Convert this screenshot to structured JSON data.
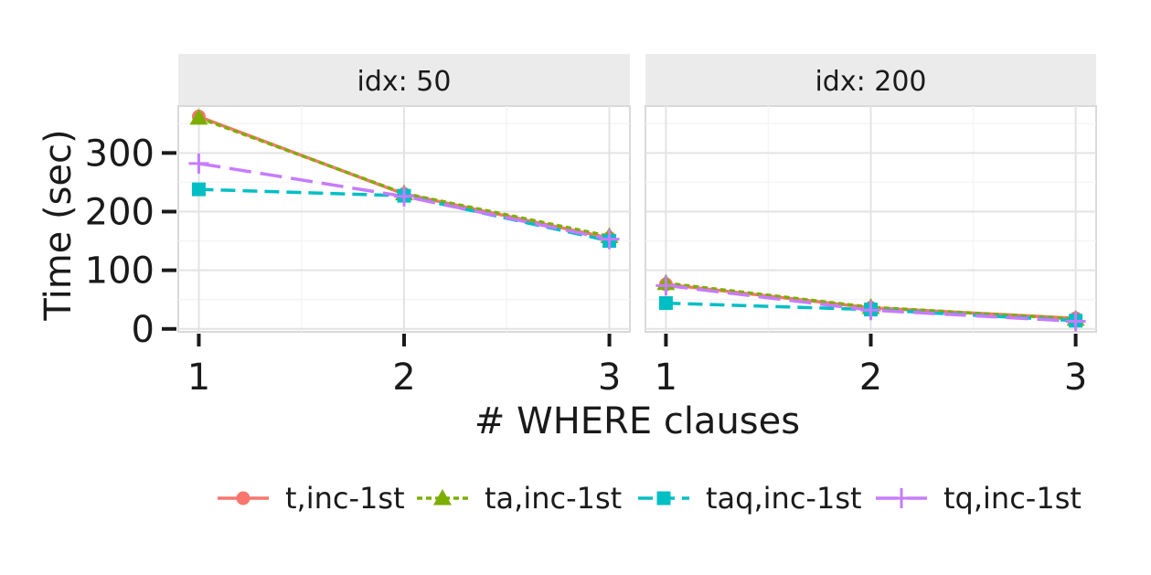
{
  "chart_data": {
    "type": "line",
    "xlabel": "# WHERE clauses",
    "ylabel": "Time (sec)",
    "x_ticks": [
      "1",
      "2",
      "3"
    ],
    "y_ticks": [
      "0",
      "100",
      "200",
      "300"
    ],
    "xlim": [
      0.9,
      3.1
    ],
    "ylim": [
      -5,
      380
    ],
    "legend_position": "bottom",
    "grid": true,
    "facet_label": "idx",
    "series_style": [
      {
        "name": "t,inc-1st",
        "color": "#F8766D",
        "dash": "solid",
        "marker": "circle"
      },
      {
        "name": "ta,inc-1st",
        "color": "#7CAE00",
        "dash": "dotted",
        "marker": "triangle"
      },
      {
        "name": "taq,inc-1st",
        "color": "#00BFC4",
        "dash": "dashed",
        "marker": "square"
      },
      {
        "name": "tq,inc-1st",
        "color": "#C77CFF",
        "dash": "longdash",
        "marker": "plus"
      }
    ],
    "panels": [
      {
        "strip": "idx: 50",
        "x": [
          1,
          2,
          3
        ],
        "series": [
          {
            "name": "t,inc-1st",
            "values": [
              362,
              230,
              155
            ]
          },
          {
            "name": "ta,inc-1st",
            "values": [
              360,
              231,
              158
            ]
          },
          {
            "name": "taq,inc-1st",
            "values": [
              238,
              227,
              150
            ]
          },
          {
            "name": "tq,inc-1st",
            "values": [
              282,
              226,
              153
            ]
          }
        ]
      },
      {
        "strip": "idx: 200",
        "x": [
          1,
          2,
          3
        ],
        "series": [
          {
            "name": "t,inc-1st",
            "values": [
              76,
              36,
              18
            ]
          },
          {
            "name": "ta,inc-1st",
            "values": [
              78,
              37,
              17
            ]
          },
          {
            "name": "taq,inc-1st",
            "values": [
              44,
              33,
              14
            ]
          },
          {
            "name": "tq,inc-1st",
            "values": [
              74,
              32,
              13
            ]
          }
        ]
      }
    ]
  }
}
